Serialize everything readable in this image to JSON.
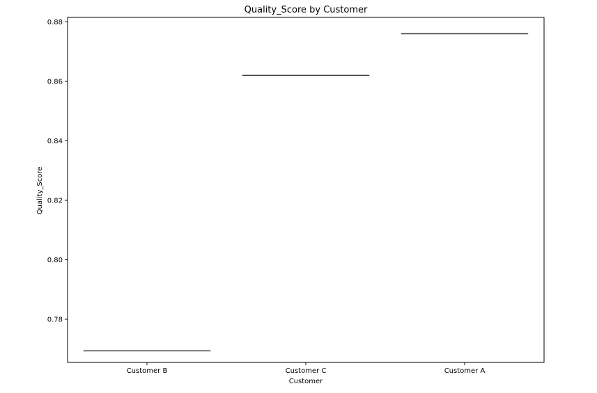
{
  "chart_data": {
    "type": "box",
    "title": "Quality_Score by Customer",
    "xlabel": "Customer",
    "ylabel": "Quality_Score",
    "categories": [
      "Customer B",
      "Customer C",
      "Customer A"
    ],
    "values": [
      0.7694,
      0.862,
      0.876
    ],
    "ylim": [
      0.7655,
      0.8815
    ],
    "yticks": [
      0.78,
      0.8,
      0.82,
      0.84,
      0.86,
      0.88
    ],
    "ytick_labels": [
      "0.78",
      "0.80",
      "0.82",
      "0.84",
      "0.86",
      "0.88"
    ],
    "grid": false,
    "legend": "none",
    "colors": {
      "axes": "#000000",
      "box_line": "#3f3f3f",
      "background": "#ffffff"
    }
  }
}
